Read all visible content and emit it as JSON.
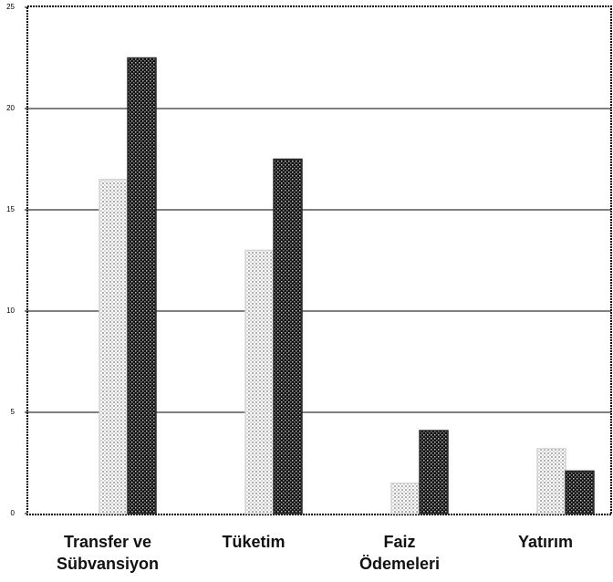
{
  "chart_data": {
    "type": "bar",
    "categories": [
      "Transfer ve Sübvansiyon",
      "Tüketim",
      "Faiz Ödemeleri",
      "Yatırım"
    ],
    "series": [
      {
        "color": "#d4d4d4",
        "values": [
          16.5,
          13,
          1.5,
          3.2
        ]
      },
      {
        "color": "#2b2b2b",
        "values": [
          22.5,
          17.5,
          4.1,
          2.1
        ]
      }
    ],
    "ylim": [
      0,
      25
    ],
    "yticks": [
      0,
      5,
      10,
      15,
      20,
      25
    ],
    "grid": true
  }
}
